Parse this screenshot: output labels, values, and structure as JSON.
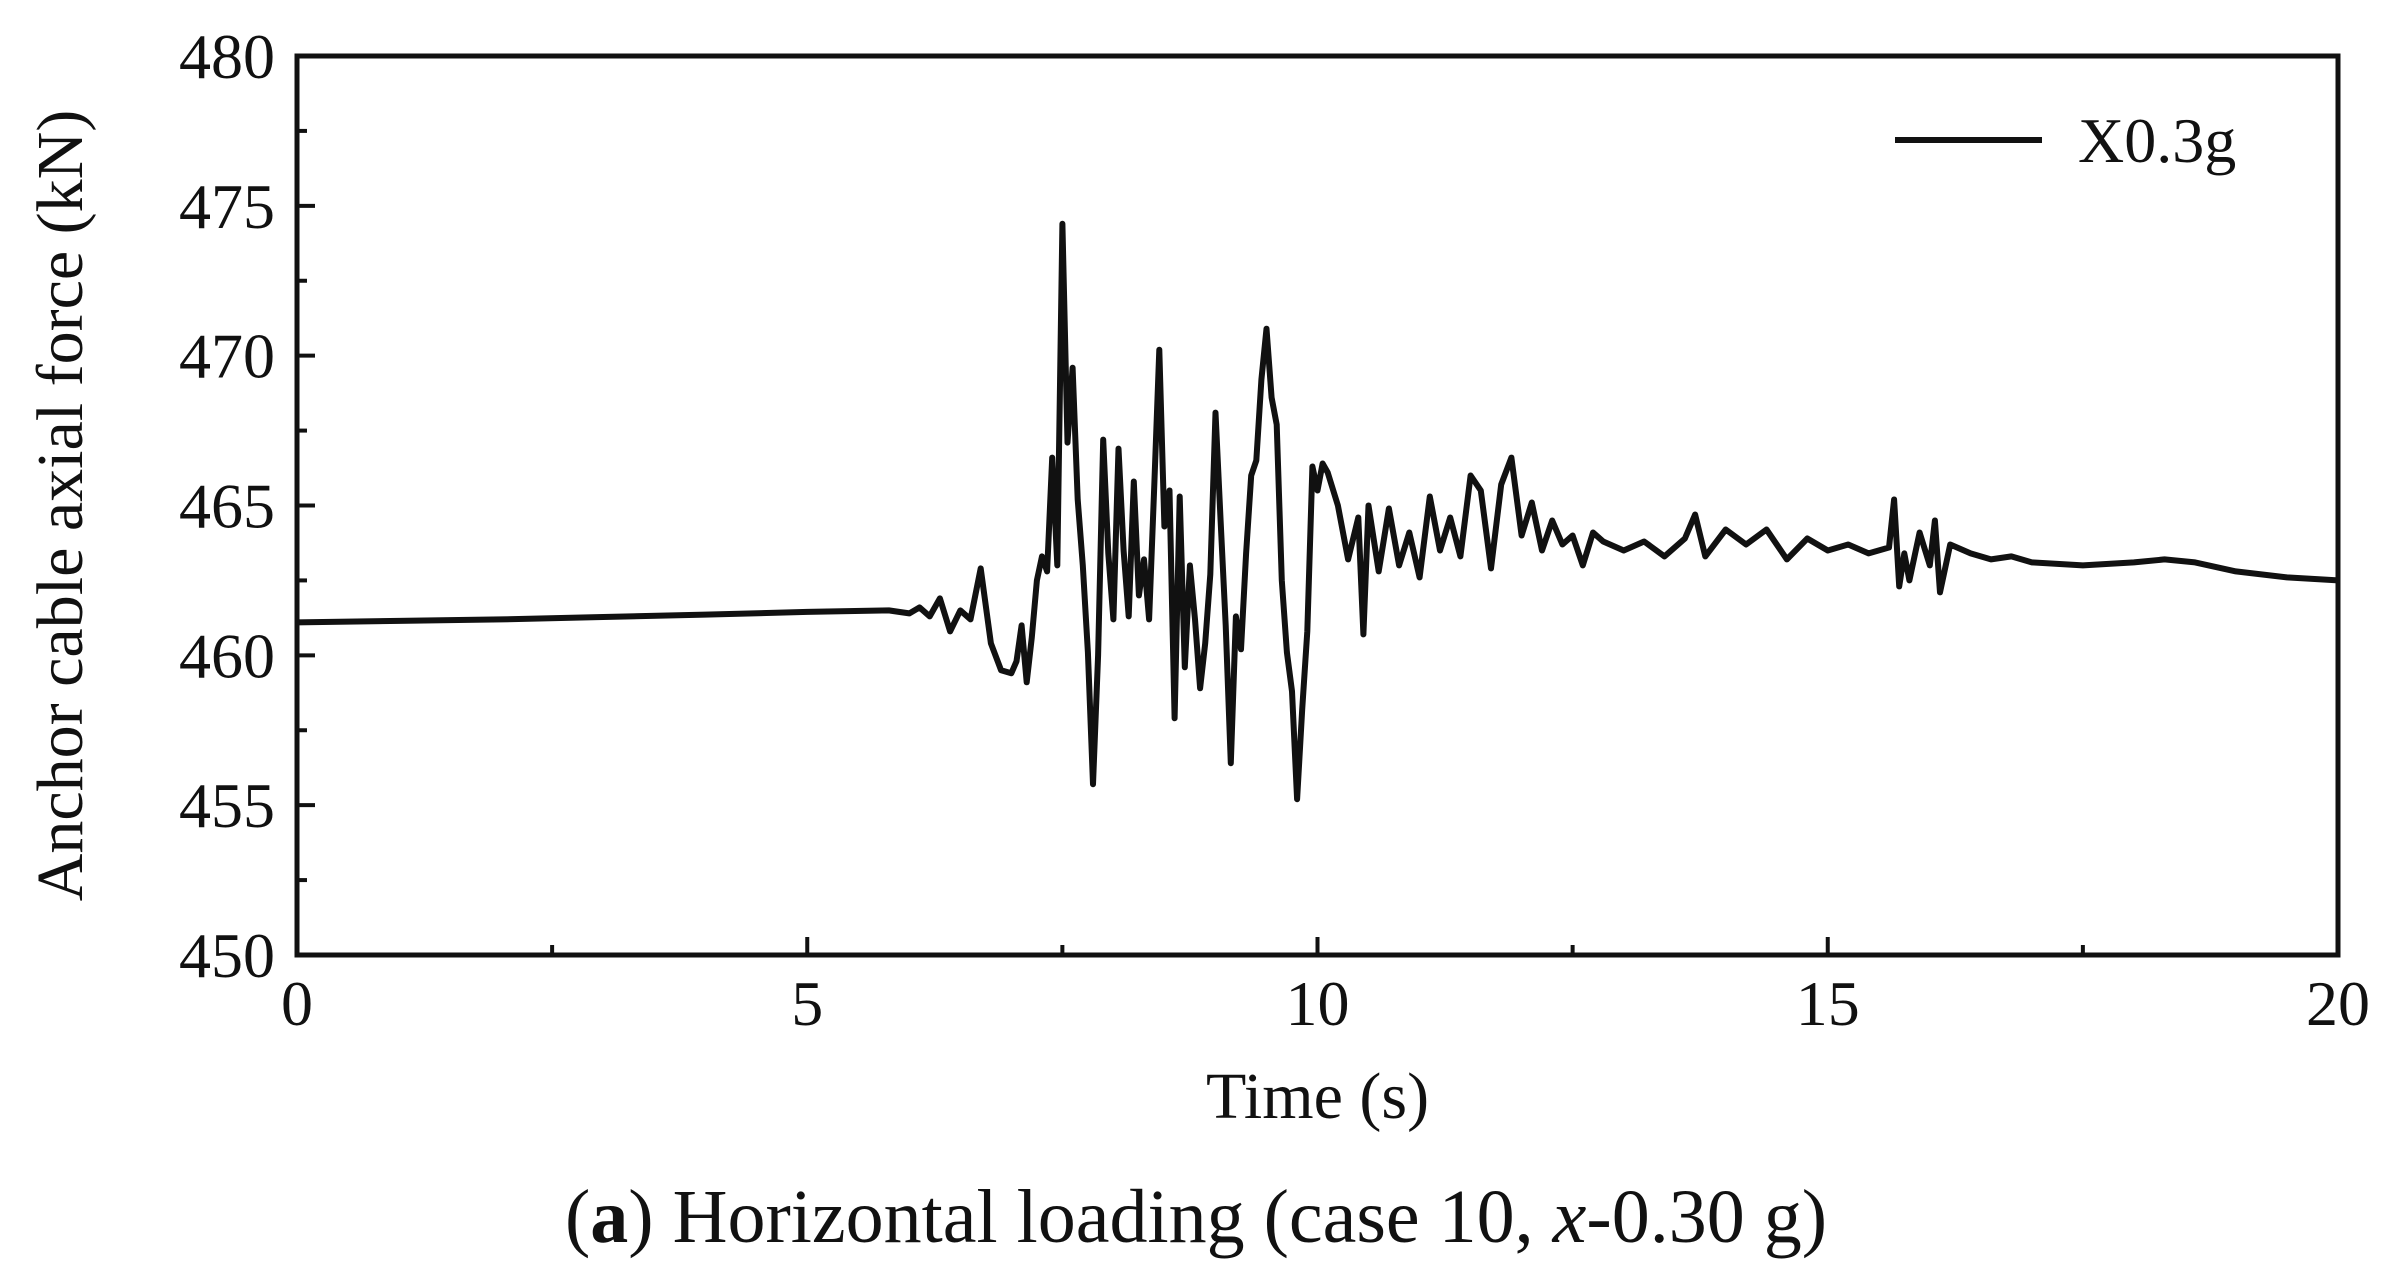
{
  "chart_data": {
    "type": "line",
    "xlabel": "Time (s)",
    "ylabel": "Anchor cable axial force (kN)",
    "xlim": [
      0,
      20
    ],
    "ylim": [
      450,
      480
    ],
    "xticks": [
      0,
      5,
      10,
      15,
      20
    ],
    "yticks": [
      450,
      455,
      460,
      465,
      470,
      475,
      480
    ],
    "grid": false,
    "legend_position": "top-right",
    "series": [
      {
        "name": "X0.3g",
        "color": "#111111",
        "x": [
          0,
          1,
          2,
          3,
          4,
          5,
          5.8,
          6.0,
          6.1,
          6.2,
          6.3,
          6.4,
          6.5,
          6.6,
          6.7,
          6.8,
          6.9,
          7.0,
          7.05,
          7.1,
          7.15,
          7.2,
          7.25,
          7.3,
          7.35,
          7.4,
          7.45,
          7.5,
          7.55,
          7.6,
          7.65,
          7.7,
          7.75,
          7.8,
          7.85,
          7.9,
          7.95,
          8.0,
          8.05,
          8.1,
          8.15,
          8.2,
          8.25,
          8.3,
          8.35,
          8.4,
          8.45,
          8.5,
          8.55,
          8.6,
          8.65,
          8.7,
          8.75,
          8.8,
          8.85,
          8.9,
          8.95,
          9.0,
          9.05,
          9.1,
          9.15,
          9.2,
          9.25,
          9.3,
          9.35,
          9.4,
          9.45,
          9.5,
          9.55,
          9.6,
          9.65,
          9.7,
          9.75,
          9.8,
          9.85,
          9.9,
          9.95,
          10.0,
          10.05,
          10.1,
          10.2,
          10.3,
          10.4,
          10.45,
          10.5,
          10.6,
          10.7,
          10.8,
          10.9,
          11.0,
          11.1,
          11.2,
          11.3,
          11.4,
          11.5,
          11.6,
          11.7,
          11.8,
          11.9,
          12.0,
          12.1,
          12.2,
          12.3,
          12.4,
          12.5,
          12.6,
          12.7,
          12.8,
          13.0,
          13.2,
          13.4,
          13.6,
          13.7,
          13.8,
          14.0,
          14.2,
          14.4,
          14.6,
          14.8,
          15.0,
          15.2,
          15.4,
          15.6,
          15.65,
          15.7,
          15.75,
          15.8,
          15.9,
          16.0,
          16.05,
          16.1,
          16.2,
          16.4,
          16.6,
          16.8,
          17.0,
          17.5,
          18.0,
          18.3,
          18.6,
          19.0,
          19.5,
          20.0
        ],
        "y": [
          461.1,
          461.15,
          461.2,
          461.28,
          461.36,
          461.45,
          461.5,
          461.4,
          461.6,
          461.3,
          461.9,
          460.8,
          461.5,
          461.2,
          462.9,
          460.4,
          459.5,
          459.4,
          459.8,
          461.0,
          459.1,
          460.6,
          462.5,
          463.3,
          462.8,
          466.6,
          463.0,
          474.4,
          467.1,
          469.6,
          465.2,
          463.0,
          460.1,
          455.7,
          460.0,
          467.2,
          463.4,
          461.2,
          466.9,
          463.5,
          461.3,
          465.8,
          462.0,
          463.2,
          461.2,
          465.6,
          470.2,
          464.3,
          465.5,
          457.9,
          465.3,
          459.6,
          463.0,
          461.2,
          458.9,
          460.4,
          462.7,
          468.1,
          464.5,
          461.0,
          456.4,
          461.3,
          460.2,
          463.4,
          466.0,
          466.5,
          469.2,
          470.9,
          468.6,
          467.7,
          462.5,
          460.1,
          458.8,
          455.2,
          458.2,
          460.8,
          466.3,
          465.5,
          466.4,
          466.1,
          465.0,
          463.2,
          464.6,
          460.7,
          465.0,
          462.8,
          464.9,
          463.0,
          464.1,
          462.6,
          465.3,
          463.5,
          464.6,
          463.3,
          466.0,
          465.5,
          462.9,
          465.7,
          466.6,
          464.0,
          465.1,
          463.5,
          464.5,
          463.7,
          464.0,
          463.0,
          464.1,
          463.8,
          463.5,
          463.8,
          463.3,
          463.9,
          464.7,
          463.3,
          464.2,
          463.7,
          464.2,
          463.2,
          463.9,
          463.5,
          463.7,
          463.4,
          463.6,
          465.2,
          462.3,
          463.4,
          462.5,
          464.1,
          463.0,
          464.5,
          462.1,
          463.7,
          463.4,
          463.2,
          463.3,
          463.1,
          463.0,
          463.1,
          463.2,
          463.1,
          462.8,
          462.6,
          462.5
        ]
      }
    ]
  },
  "caption": {
    "open": "(",
    "letter": "a",
    "text_before_italic": ") Horizontal loading (case 10, ",
    "italic": "x",
    "text_after_italic": "-0.30 g)"
  }
}
